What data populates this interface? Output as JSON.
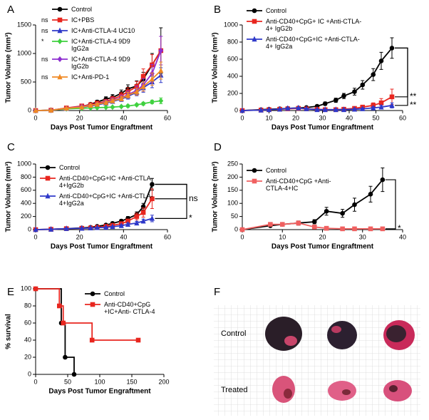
{
  "chart_data": [
    {
      "type": "line",
      "panel_label": "A",
      "x_label": "Days Post Tumor Engraftment",
      "y_label": "Tumor Volume (mm³)",
      "x": [
        0,
        7,
        14,
        21,
        25,
        28,
        32,
        35,
        39,
        42,
        46,
        49,
        53,
        57
      ],
      "xlim": [
        0,
        60
      ],
      "xticks": [
        0,
        20,
        40,
        60
      ],
      "ylim": [
        0,
        1500
      ],
      "yticks": [
        0,
        500,
        1000,
        1500
      ],
      "series": [
        {
          "name": "Control",
          "color": "#000000",
          "marker": "circle",
          "values": [
            0,
            5,
            40,
            70,
            110,
            150,
            200,
            230,
            300,
            380,
            430,
            550,
            800,
            1050
          ],
          "errors": [
            0,
            5,
            10,
            15,
            20,
            30,
            40,
            50,
            60,
            70,
            90,
            120,
            200,
            400
          ]
        },
        {
          "name": "IC+PBS",
          "color": "#e8261f",
          "marker": "square",
          "significance": "ns",
          "values": [
            0,
            5,
            45,
            80,
            100,
            130,
            160,
            200,
            260,
            330,
            420,
            600,
            800,
            1050
          ],
          "errors": [
            0,
            5,
            10,
            15,
            20,
            25,
            35,
            45,
            55,
            70,
            90,
            130,
            180,
            250
          ]
        },
        {
          "name": "IC+Anti-CTLA-4 UC10",
          "color": "#2f39c9",
          "marker": "triangle",
          "significance": "ns",
          "values": [
            0,
            5,
            35,
            60,
            80,
            100,
            130,
            160,
            200,
            250,
            320,
            400,
            500,
            620
          ],
          "errors": [
            0,
            5,
            10,
            12,
            15,
            20,
            25,
            30,
            40,
            50,
            60,
            80,
            100,
            130
          ]
        },
        {
          "name": "IC+Anti-CTLA-4 9D9 IgG2a",
          "color": "#3fd13f",
          "marker": "diamond",
          "significance": "*",
          "values": [
            0,
            5,
            30,
            40,
            45,
            50,
            55,
            60,
            70,
            80,
            100,
            120,
            150,
            170
          ],
          "errors": [
            0,
            3,
            8,
            10,
            10,
            10,
            12,
            15,
            15,
            20,
            20,
            25,
            30,
            50
          ]
        },
        {
          "name": "IC+Anti-CTLA-4 9D9 IgG2b",
          "color": "#8e2fd0",
          "marker": "diamond",
          "significance": "ns",
          "values": [
            0,
            5,
            40,
            70,
            90,
            110,
            150,
            180,
            220,
            280,
            350,
            450,
            650,
            1050
          ],
          "errors": [
            0,
            5,
            10,
            15,
            20,
            25,
            30,
            40,
            50,
            60,
            80,
            110,
            160,
            250
          ]
        },
        {
          "name": "IC+Anti-PD-1",
          "color": "#f08a24",
          "marker": "triangle",
          "significance": "ns",
          "values": [
            0,
            5,
            40,
            60,
            90,
            110,
            140,
            170,
            210,
            270,
            330,
            420,
            550,
            700
          ],
          "errors": [
            0,
            5,
            10,
            12,
            15,
            20,
            25,
            30,
            40,
            50,
            60,
            80,
            110,
            150
          ]
        }
      ]
    },
    {
      "type": "line",
      "panel_label": "B",
      "x_label": "Days Post Tumor Engraftment",
      "y_label": "Tumor Volume (mm³)",
      "x": [
        0,
        7,
        10,
        14,
        17,
        21,
        24,
        28,
        31,
        35,
        38,
        42,
        45,
        49,
        52,
        56
      ],
      "xlim": [
        0,
        60
      ],
      "xticks": [
        0,
        10,
        20,
        30,
        40,
        50,
        60
      ],
      "ylim": [
        0,
        1000
      ],
      "yticks": [
        0,
        200,
        400,
        600,
        800,
        1000
      ],
      "series": [
        {
          "name": "Control",
          "color": "#000000",
          "marker": "circle",
          "values": [
            0,
            10,
            15,
            20,
            25,
            30,
            35,
            50,
            80,
            120,
            170,
            220,
            300,
            420,
            580,
            730
          ],
          "errors": [
            0,
            3,
            5,
            5,
            5,
            8,
            10,
            15,
            20,
            25,
            30,
            40,
            50,
            70,
            100,
            120
          ]
        },
        {
          "name": "Anti-CD40+CpG+ IC +Anti-CTLA-4+ IgG2b",
          "color": "#e8261f",
          "marker": "square",
          "significance": "**",
          "values": [
            0,
            5,
            10,
            15,
            20,
            25,
            20,
            15,
            10,
            10,
            15,
            25,
            40,
            60,
            90,
            160
          ],
          "errors": [
            0,
            3,
            5,
            5,
            5,
            8,
            8,
            8,
            5,
            5,
            8,
            10,
            20,
            30,
            50,
            90
          ]
        },
        {
          "name": "Anti-CD40+CpG+IC +Anti-CTLA-4+ IgG2a",
          "color": "#2f39c9",
          "marker": "triangle",
          "significance": "**",
          "values": [
            0,
            5,
            10,
            15,
            25,
            30,
            20,
            10,
            10,
            10,
            10,
            15,
            20,
            30,
            40,
            60
          ],
          "errors": [
            0,
            3,
            5,
            5,
            8,
            8,
            8,
            5,
            5,
            5,
            5,
            8,
            10,
            15,
            20,
            30
          ]
        }
      ]
    },
    {
      "type": "line",
      "panel_label": "C",
      "x_label": "Days Post Tumor Engraftment",
      "y_label": "Tumor Volume (mm³)",
      "x": [
        0,
        7,
        14,
        21,
        25,
        28,
        32,
        35,
        39,
        42,
        46,
        49,
        53
      ],
      "xlim": [
        0,
        60
      ],
      "xticks": [
        0,
        20,
        40,
        60
      ],
      "ylim": [
        0,
        1000
      ],
      "yticks": [
        0,
        200,
        400,
        600,
        800,
        1000
      ],
      "series": [
        {
          "name": "Control",
          "color": "#000000",
          "marker": "circle",
          "values": [
            0,
            5,
            15,
            25,
            35,
            50,
            70,
            95,
            130,
            170,
            230,
            350,
            690
          ],
          "errors": [
            0,
            3,
            5,
            5,
            8,
            10,
            15,
            20,
            25,
            30,
            40,
            50,
            90
          ]
        },
        {
          "name": "Anti-CD40+CpG+IC +Anti-CTLA-4+IgG2b",
          "color": "#e8261f",
          "marker": "square",
          "significance": "ns",
          "values": [
            0,
            5,
            15,
            20,
            25,
            35,
            50,
            65,
            90,
            130,
            200,
            260,
            470
          ],
          "errors": [
            0,
            3,
            5,
            5,
            8,
            10,
            12,
            15,
            20,
            30,
            50,
            70,
            150
          ]
        },
        {
          "name": "Anti-CD40+CpG+IC +Anti-CTLA-4+IgG2a",
          "color": "#2f39c9",
          "marker": "triangle",
          "significance": "*",
          "values": [
            0,
            5,
            15,
            20,
            25,
            30,
            35,
            45,
            60,
            80,
            100,
            130,
            170
          ],
          "errors": [
            0,
            3,
            5,
            5,
            5,
            8,
            8,
            10,
            15,
            20,
            25,
            30,
            50
          ]
        }
      ]
    },
    {
      "type": "line",
      "panel_label": "D",
      "x_label": "Days Post Tumor Engraftment",
      "y_label": "Tumor Volume (mm³)",
      "x": [
        0,
        7,
        10,
        14,
        18,
        21,
        25,
        28,
        32,
        35
      ],
      "xlim": [
        0,
        40
      ],
      "xticks": [
        0,
        10,
        20,
        30,
        40
      ],
      "ylim": [
        0,
        250
      ],
      "yticks": [
        0,
        50,
        100,
        150,
        200,
        250
      ],
      "series": [
        {
          "name": "Control",
          "color": "#000000",
          "marker": "circle",
          "values": [
            0,
            15,
            20,
            25,
            30,
            70,
            62,
            95,
            135,
            190
          ],
          "errors": [
            0,
            3,
            5,
            8,
            8,
            15,
            15,
            25,
            30,
            45
          ]
        },
        {
          "name": "Anti-CD40+CpG +Anti-CTLA-4+IC",
          "color": "#f06060",
          "marker": "square",
          "significance": "*",
          "values": [
            0,
            20,
            20,
            25,
            10,
            5,
            3,
            3,
            3,
            3
          ],
          "errors": [
            0,
            3,
            5,
            8,
            5,
            3,
            2,
            2,
            2,
            2
          ]
        }
      ]
    },
    {
      "type": "step",
      "panel_label": "E",
      "x_label": "Days Post Tumor Engraftment",
      "y_label": "% survival",
      "xlim": [
        0,
        200
      ],
      "xticks": [
        0,
        50,
        100,
        150,
        200
      ],
      "ylim": [
        0,
        100
      ],
      "yticks": [
        0,
        20,
        40,
        60,
        80,
        100
      ],
      "series": [
        {
          "name": "Control",
          "color": "#000000",
          "marker": "circle",
          "x": [
            0,
            40,
            46,
            60
          ],
          "values": [
            100,
            60,
            20,
            0
          ]
        },
        {
          "name": "Anti-CD40+CpG +IC+Anti- CTLA-4",
          "color": "#e8261f",
          "marker": "square",
          "x": [
            0,
            37,
            43,
            88,
            160
          ],
          "values": [
            100,
            80,
            60,
            40,
            40
          ]
        }
      ]
    }
  ],
  "photo_panel": {
    "panel_label": "F",
    "rows": [
      "Control",
      "Treated"
    ]
  }
}
